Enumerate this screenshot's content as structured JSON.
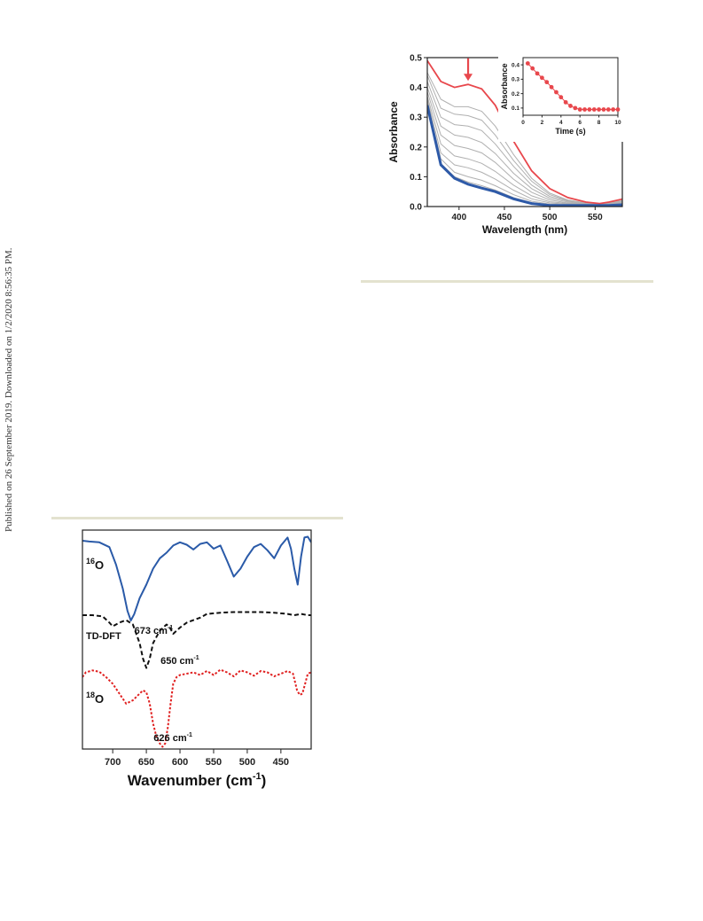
{
  "page": {
    "side_note": "Published on 26 September 2019. Downloaded on 1/2/2020 8:56:35 PM."
  },
  "chart_data": [
    {
      "type": "line",
      "xlabel": "Wavelength (nm)",
      "ylabel": "Absorbance",
      "xlim": [
        365,
        580
      ],
      "ylim": [
        0,
        0.5
      ],
      "x_ticks": [
        400,
        450,
        500,
        550
      ],
      "y_ticks": [
        0.0,
        0.1,
        0.2,
        0.3,
        0.4,
        0.5
      ],
      "grid": false,
      "colors": {
        "initial": "#e8474c",
        "intermediate": "#b0b0b0",
        "final": "#2e5aa8",
        "arrow": "#e8474c"
      },
      "series": [
        {
          "role": "initial",
          "x": [
            365,
            380,
            395,
            410,
            425,
            440,
            460,
            480,
            500,
            520,
            540,
            555,
            565,
            580
          ],
          "y": [
            0.49,
            0.42,
            0.4,
            0.41,
            0.395,
            0.34,
            0.22,
            0.12,
            0.06,
            0.03,
            0.015,
            0.01,
            0.015,
            0.025
          ]
        },
        {
          "role": "intermediate",
          "x": [
            365,
            380,
            395,
            410,
            425,
            440,
            460,
            480,
            500,
            520,
            540,
            555,
            565,
            580
          ],
          "y": [
            0.45,
            0.36,
            0.335,
            0.335,
            0.32,
            0.27,
            0.175,
            0.095,
            0.045,
            0.022,
            0.012,
            0.008,
            0.012,
            0.02
          ]
        },
        {
          "role": "intermediate",
          "x": [
            365,
            380,
            395,
            410,
            425,
            440,
            460,
            480,
            500,
            520,
            540,
            555,
            565,
            580
          ],
          "y": [
            0.44,
            0.33,
            0.31,
            0.305,
            0.29,
            0.24,
            0.155,
            0.085,
            0.04,
            0.02,
            0.011,
            0.008,
            0.011,
            0.018
          ]
        },
        {
          "role": "intermediate",
          "x": [
            365,
            380,
            395,
            410,
            425,
            440,
            460,
            480,
            500,
            520,
            540,
            555,
            565,
            580
          ],
          "y": [
            0.42,
            0.3,
            0.275,
            0.27,
            0.255,
            0.21,
            0.135,
            0.072,
            0.034,
            0.018,
            0.01,
            0.007,
            0.01,
            0.016
          ]
        },
        {
          "role": "intermediate",
          "x": [
            365,
            380,
            395,
            410,
            425,
            440,
            460,
            480,
            500,
            520,
            540,
            555,
            565,
            580
          ],
          "y": [
            0.4,
            0.27,
            0.24,
            0.232,
            0.215,
            0.178,
            0.112,
            0.06,
            0.028,
            0.015,
            0.009,
            0.006,
            0.009,
            0.014
          ]
        },
        {
          "role": "intermediate",
          "x": [
            365,
            380,
            395,
            410,
            425,
            440,
            460,
            480,
            500,
            520,
            540,
            555,
            565,
            580
          ],
          "y": [
            0.385,
            0.24,
            0.205,
            0.195,
            0.18,
            0.148,
            0.092,
            0.048,
            0.022,
            0.012,
            0.008,
            0.006,
            0.008,
            0.012
          ]
        },
        {
          "role": "intermediate",
          "x": [
            365,
            380,
            395,
            410,
            425,
            440,
            460,
            480,
            500,
            520,
            540,
            555,
            565,
            580
          ],
          "y": [
            0.37,
            0.21,
            0.17,
            0.16,
            0.145,
            0.118,
            0.072,
            0.036,
            0.016,
            0.01,
            0.007,
            0.005,
            0.007,
            0.011
          ]
        },
        {
          "role": "intermediate",
          "x": [
            365,
            380,
            395,
            410,
            425,
            440,
            460,
            480,
            500,
            520,
            540,
            555,
            565,
            580
          ],
          "y": [
            0.36,
            0.18,
            0.14,
            0.13,
            0.115,
            0.092,
            0.055,
            0.026,
            0.012,
            0.008,
            0.006,
            0.005,
            0.006,
            0.01
          ]
        },
        {
          "role": "intermediate",
          "x": [
            365,
            380,
            395,
            410,
            425,
            440,
            460,
            480,
            500,
            520,
            540,
            555,
            565,
            580
          ],
          "y": [
            0.35,
            0.16,
            0.115,
            0.1,
            0.088,
            0.07,
            0.04,
            0.018,
            0.008,
            0.006,
            0.005,
            0.004,
            0.005,
            0.009
          ]
        },
        {
          "role": "intermediate",
          "x": [
            365,
            380,
            395,
            410,
            425,
            440,
            460,
            480,
            500,
            520,
            540,
            555,
            565,
            580
          ],
          "y": [
            0.345,
            0.145,
            0.1,
            0.082,
            0.07,
            0.055,
            0.03,
            0.013,
            0.006,
            0.005,
            0.004,
            0.004,
            0.005,
            0.008
          ]
        },
        {
          "role": "final",
          "x": [
            365,
            380,
            395,
            410,
            425,
            440,
            460,
            480,
            500,
            520,
            540,
            555,
            565,
            580
          ],
          "y": [
            0.34,
            0.14,
            0.095,
            0.075,
            0.062,
            0.05,
            0.026,
            0.01,
            0.004,
            0.004,
            0.004,
            0.004,
            0.004,
            0.006
          ]
        }
      ],
      "inset": {
        "type": "scatter",
        "xlabel": "Time (s)",
        "ylabel": "Absorbance",
        "xlim": [
          0,
          10
        ],
        "ylim": [
          0.05,
          0.45
        ],
        "x_ticks": [
          0,
          2,
          4,
          6,
          8,
          10
        ],
        "y_ticks": [
          0.1,
          0.2,
          0.3,
          0.4
        ],
        "color": "#e8474c",
        "x": [
          0.5,
          1.0,
          1.5,
          2.0,
          2.5,
          3.0,
          3.5,
          4.0,
          4.5,
          5.0,
          5.5,
          6.0,
          6.5,
          7.0,
          7.5,
          8.0,
          8.5,
          9.0,
          9.5,
          10.0
        ],
        "y": [
          0.41,
          0.375,
          0.34,
          0.31,
          0.28,
          0.245,
          0.21,
          0.175,
          0.14,
          0.115,
          0.1,
          0.09,
          0.09,
          0.09,
          0.09,
          0.09,
          0.09,
          0.09,
          0.09,
          0.09
        ]
      }
    },
    {
      "type": "line",
      "xlabel": "Wavenumber (cm",
      "xlabel_sup": "-1",
      "xlabel_tail": ")",
      "xlim": [
        745,
        405
      ],
      "x_ticks": [
        700,
        650,
        600,
        550,
        500,
        450
      ],
      "grid": false,
      "series": [
        {
          "label_sup": "16",
          "label_main": "O",
          "color": "#2a5aa8",
          "style": "solid",
          "x": [
            745,
            735,
            720,
            705,
            695,
            685,
            678,
            673,
            668,
            660,
            650,
            640,
            630,
            620,
            610,
            600,
            590,
            580,
            570,
            560,
            550,
            540,
            530,
            520,
            510,
            500,
            490,
            480,
            470,
            460,
            450,
            440,
            435,
            430,
            425,
            420,
            415,
            410,
            405
          ],
          "y": [
            0.0,
            0.01,
            0.02,
            0.08,
            0.3,
            0.6,
            0.88,
            1.0,
            0.92,
            0.72,
            0.55,
            0.35,
            0.22,
            0.15,
            0.06,
            0.02,
            0.05,
            0.11,
            0.04,
            0.02,
            0.1,
            0.06,
            0.25,
            0.45,
            0.35,
            0.2,
            0.08,
            0.04,
            0.12,
            0.22,
            0.06,
            -0.04,
            0.1,
            0.35,
            0.55,
            0.2,
            -0.04,
            -0.05,
            0.02
          ]
        },
        {
          "label": "TD-DFT",
          "color": "#111111",
          "style": "dashed",
          "x": [
            745,
            730,
            715,
            705,
            700,
            690,
            680,
            670,
            660,
            655,
            650,
            645,
            640,
            630,
            620,
            615,
            610,
            600,
            590,
            580,
            570,
            560,
            540,
            520,
            500,
            480,
            460,
            440,
            430,
            420,
            410,
            405
          ],
          "y": [
            0.0,
            0.0,
            0.02,
            0.12,
            0.18,
            0.12,
            0.08,
            0.15,
            0.45,
            0.7,
            0.85,
            0.7,
            0.45,
            0.25,
            0.15,
            0.2,
            0.3,
            0.2,
            0.12,
            0.08,
            0.04,
            -0.02,
            -0.04,
            -0.05,
            -0.05,
            -0.05,
            -0.04,
            -0.02,
            0.0,
            -0.02,
            0.0,
            0.0
          ]
        },
        {
          "label_sup": "18",
          "label_main": "O",
          "color": "#e02020",
          "style": "dotted",
          "x": [
            745,
            740,
            730,
            720,
            710,
            700,
            690,
            680,
            670,
            660,
            655,
            650,
            645,
            640,
            635,
            630,
            626,
            622,
            618,
            614,
            610,
            605,
            600,
            590,
            580,
            570,
            560,
            550,
            540,
            530,
            520,
            510,
            500,
            490,
            480,
            470,
            460,
            450,
            440,
            432,
            426,
            422,
            418,
            414,
            410,
            405
          ],
          "y": [
            0.05,
            -0.02,
            -0.05,
            -0.03,
            0.05,
            0.15,
            0.3,
            0.45,
            0.4,
            0.3,
            0.25,
            0.28,
            0.45,
            0.75,
            0.95,
            1.05,
            1.1,
            1.05,
            0.8,
            0.45,
            0.15,
            0.05,
            0.02,
            0.0,
            -0.02,
            0.02,
            -0.04,
            0.02,
            -0.06,
            -0.02,
            0.04,
            -0.05,
            -0.02,
            0.03,
            -0.04,
            -0.02,
            0.04,
            0.0,
            -0.04,
            0.0,
            0.25,
            0.32,
            0.3,
            0.15,
            0.0,
            -0.02
          ]
        }
      ],
      "annotations": [
        {
          "text": "673 cm",
          "sup": "-1"
        },
        {
          "text": "650 cm",
          "sup": "-1"
        },
        {
          "text": "626 cm",
          "sup": "-1"
        }
      ]
    }
  ]
}
